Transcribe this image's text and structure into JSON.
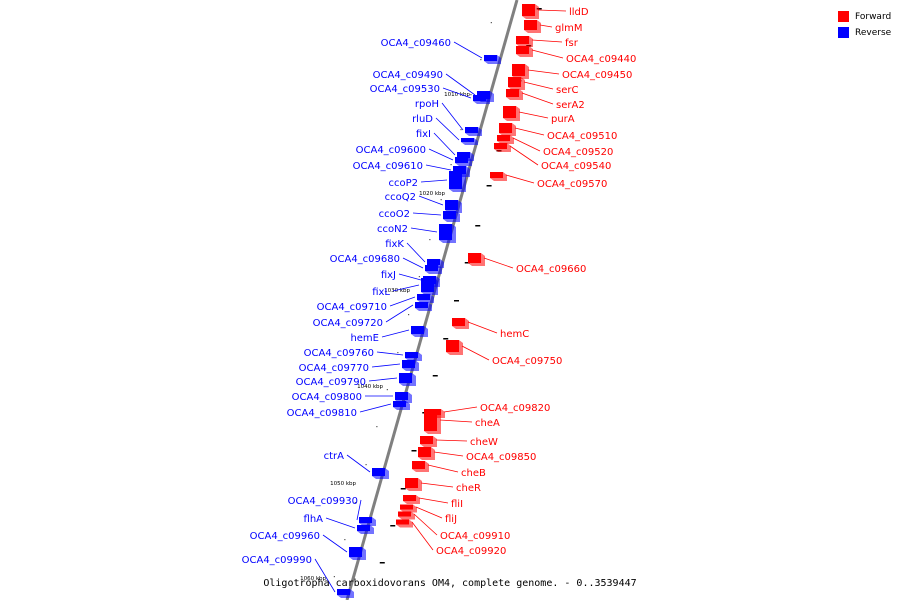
{
  "caption": "Oligotropha carboxidovorans OM4, complete genome. - 0..3539447",
  "legend": [
    {
      "label": "Forward",
      "color": "#ff0000"
    },
    {
      "label": "Reverse",
      "color": "#0000ff"
    }
  ],
  "colors": {
    "forward": "#ff0000",
    "reverse": "#0000ff",
    "backbone": "#808080"
  },
  "scale_labels": [
    "1010 kbp",
    "1020 kbp",
    "1030 kbp",
    "1040 kbp",
    "1050 kbp",
    "1060 kbp"
  ],
  "forward_genes": [
    "lldD",
    "glmM",
    "fsr",
    "OCA4_c09440",
    "OCA4_c09450",
    "serC",
    "serA2",
    "purA",
    "OCA4_c09510",
    "OCA4_c09520",
    "OCA4_c09540",
    "OCA4_c09570",
    "OCA4_c09660",
    "hemC",
    "OCA4_c09750",
    "OCA4_c09820",
    "cheA",
    "cheW",
    "OCA4_c09850",
    "cheB",
    "cheR",
    "fliI",
    "fliJ",
    "OCA4_c09910",
    "OCA4_c09920"
  ],
  "reverse_genes": [
    "OCA4_c09460",
    "OCA4_c09490",
    "OCA4_c09530",
    "rpoH",
    "rluD",
    "fixI",
    "OCA4_c09600",
    "OCA4_c09610",
    "ccoP2",
    "ccoQ2",
    "ccoO2",
    "ccoN2",
    "fixK",
    "OCA4_c09680",
    "fixJ",
    "fixL",
    "OCA4_c09710",
    "OCA4_c09720",
    "hemE",
    "OCA4_c09760",
    "OCA4_c09770",
    "OCA4_c09790",
    "OCA4_c09800",
    "OCA4_c09810",
    "ctrA",
    "OCA4_c09930",
    "flhA",
    "OCA4_c09960",
    "OCA4_c09990"
  ]
}
